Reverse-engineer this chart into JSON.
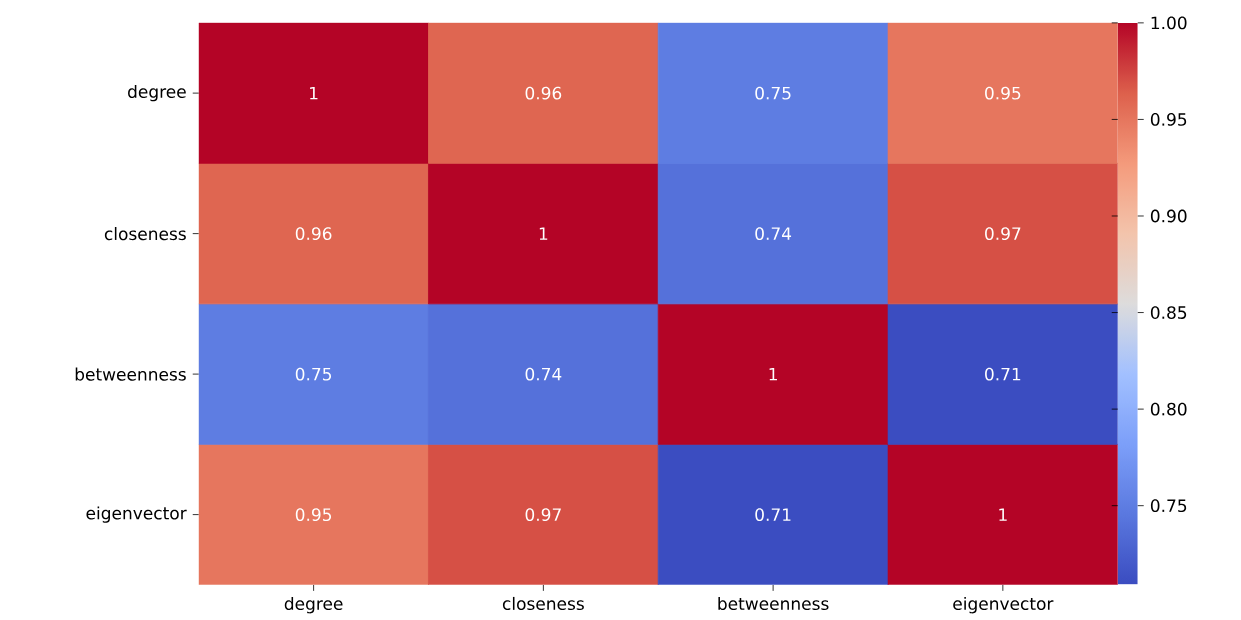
{
  "chart_data": {
    "type": "heatmap",
    "categories": [
      "degree",
      "closeness",
      "betweenness",
      "eigenvector"
    ],
    "y_categories": [
      "degree",
      "closeness",
      "betweenness",
      "eigenvector"
    ],
    "cells": [
      [
        1,
        0.96,
        0.75,
        0.95
      ],
      [
        0.96,
        1,
        0.74,
        0.97
      ],
      [
        0.75,
        0.74,
        1,
        0.71
      ],
      [
        0.95,
        0.97,
        0.71,
        1
      ]
    ],
    "data_labels": true,
    "clim": [
      0.709,
      1
    ],
    "cticks": [
      {
        "value": 0.75,
        "label": "0.75"
      },
      {
        "value": 0.8,
        "label": "0.80"
      },
      {
        "value": 0.85,
        "label": "0.85"
      },
      {
        "value": 0.9,
        "label": "0.90"
      },
      {
        "value": 0.95,
        "label": "0.95"
      },
      {
        "value": 1,
        "label": "1.00"
      }
    ]
  }
}
